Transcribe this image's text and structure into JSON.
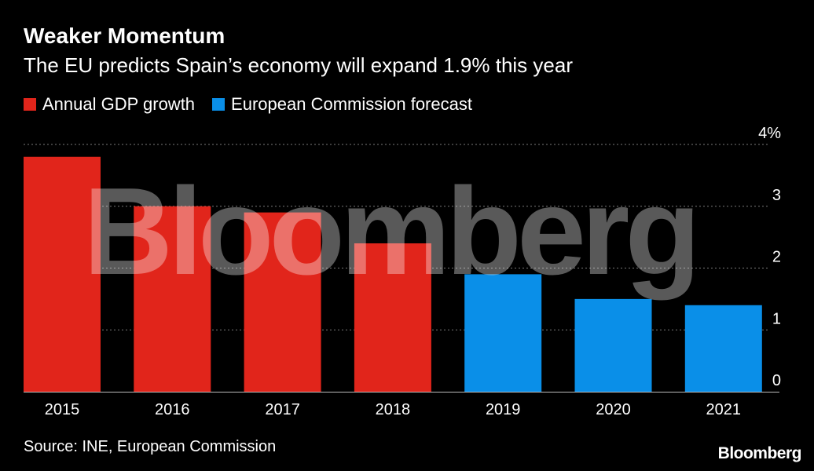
{
  "colors": {
    "background": "#000000",
    "actual": "#e1251b",
    "forecast": "#0a8fe8",
    "grid": "#7a7a7a",
    "text": "#ffffff"
  },
  "header": {
    "title": "Weaker Momentum",
    "subtitle": "The EU predicts Spain’s economy will expand 1.9% this year"
  },
  "legend": [
    {
      "label": "Annual GDP growth",
      "color": "#e1251b"
    },
    {
      "label": "European Commission forecast",
      "color": "#0a8fe8"
    }
  ],
  "footer": {
    "source": "Source: INE, European Commission",
    "brand": "Bloomberg"
  },
  "watermark": "Bloomberg",
  "chart_data": {
    "type": "bar",
    "title": "Weaker Momentum",
    "subtitle": "The EU predicts Spain’s economy will expand 1.9% this year",
    "categories": [
      "2015",
      "2016",
      "2017",
      "2018",
      "2019",
      "2020",
      "2021"
    ],
    "values": [
      3.8,
      3.0,
      2.9,
      2.4,
      1.9,
      1.5,
      1.4
    ],
    "series_type": [
      "actual",
      "actual",
      "actual",
      "actual",
      "forecast",
      "forecast",
      "forecast"
    ],
    "ylim": [
      0,
      4
    ],
    "yticks": [
      0,
      1,
      2,
      3,
      4
    ],
    "ytick_labels": [
      "0",
      "1",
      "2",
      "3",
      "4%"
    ],
    "xlabel": "",
    "ylabel": "",
    "grid": true
  }
}
